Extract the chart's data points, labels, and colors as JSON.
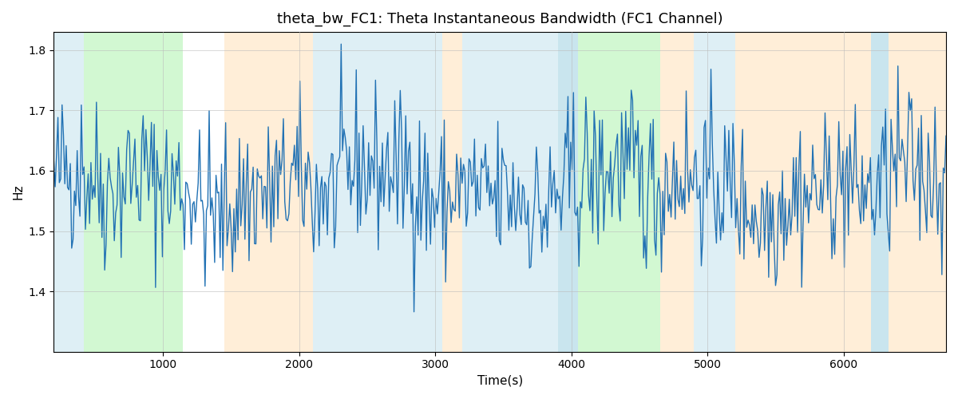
{
  "title": "theta_bw_FC1: Theta Instantaneous Bandwidth (FC1 Channel)",
  "xlabel": "Time(s)",
  "ylabel": "Hz",
  "ylim": [
    1.3,
    1.83
  ],
  "xlim": [
    200,
    6750
  ],
  "line_color": "#2272b4",
  "line_width": 1.0,
  "background_color": "#ffffff",
  "grid": true,
  "grid_color": "#bbbbbb",
  "title_fontsize": 13,
  "label_fontsize": 11,
  "bands": [
    {
      "xmin": 200,
      "xmax": 420,
      "color": "#add8e6",
      "alpha": 0.4
    },
    {
      "xmin": 420,
      "xmax": 1150,
      "color": "#90ee90",
      "alpha": 0.4
    },
    {
      "xmin": 1450,
      "xmax": 2100,
      "color": "#ffd59e",
      "alpha": 0.4
    },
    {
      "xmin": 2100,
      "xmax": 3050,
      "color": "#add8e6",
      "alpha": 0.4
    },
    {
      "xmin": 3050,
      "xmax": 3200,
      "color": "#ffd59e",
      "alpha": 0.4
    },
    {
      "xmin": 3200,
      "xmax": 3900,
      "color": "#add8e6",
      "alpha": 0.4
    },
    {
      "xmin": 3900,
      "xmax": 4050,
      "color": "#add8e6",
      "alpha": 0.65
    },
    {
      "xmin": 4050,
      "xmax": 4650,
      "color": "#90ee90",
      "alpha": 0.4
    },
    {
      "xmin": 4650,
      "xmax": 4900,
      "color": "#ffd59e",
      "alpha": 0.4
    },
    {
      "xmin": 4900,
      "xmax": 5200,
      "color": "#add8e6",
      "alpha": 0.4
    },
    {
      "xmin": 5200,
      "xmax": 6200,
      "color": "#ffd59e",
      "alpha": 0.4
    },
    {
      "xmin": 6200,
      "xmax": 6330,
      "color": "#add8e6",
      "alpha": 0.65
    },
    {
      "xmin": 6330,
      "xmax": 6750,
      "color": "#ffd59e",
      "alpha": 0.4
    }
  ],
  "seed": 42,
  "n_points": 650,
  "t_start": 200,
  "t_end": 6750,
  "mean": 1.572,
  "std": 0.065
}
